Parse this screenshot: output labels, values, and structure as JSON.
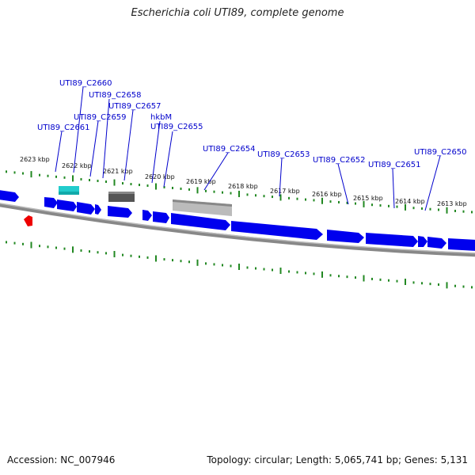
{
  "header": {
    "title": "Escherichia coli UTI89, complete genome"
  },
  "footer": {
    "accession": "Accession: NC_007946",
    "topology": "Topology: circular; Length: 5,065,741 bp; Genes: 5,131"
  },
  "colors": {
    "gene_forward": "#0000ee",
    "gene_label": "#0000cc",
    "tick": "#228822",
    "backbone": "#888888",
    "rna_cyan": "#22cccc",
    "feature_dark": "#555555",
    "feature_light": "#bbbbbb",
    "marker_red": "#ee0000"
  },
  "scale_ticks": [
    "2623 kbp",
    "2622 kbp",
    "2621 kbp",
    "2620 kbp",
    "2619 kbp",
    "2618 kbp",
    "2617 kbp",
    "2616 kbp",
    "2615 kbp",
    "2614 kbp",
    "2613 kbp"
  ],
  "gene_labels": [
    "UTI89_C2660",
    "UTI89_C2658",
    "UTI89_C2657",
    "UTI89_C2659",
    "hkbM",
    "UTI89_C2661",
    "UTI89_C2655",
    "UTI89_C2654",
    "UTI89_C2653",
    "UTI89_C2652",
    "UTI89_C2651",
    "UTI89_C2650"
  ]
}
